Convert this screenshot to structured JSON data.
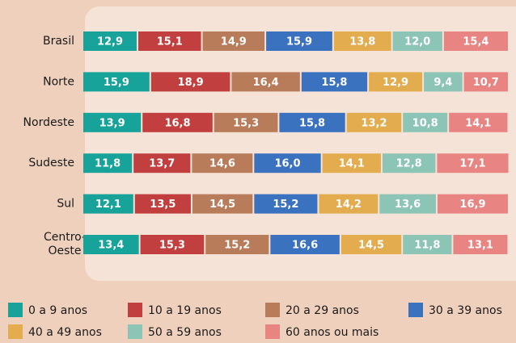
{
  "chart_data": {
    "type": "stacked_bar_horizontal",
    "categories": [
      "Brasil",
      "Norte",
      "Nordeste",
      "Sudeste",
      "Sul",
      "Centro-Oeste"
    ],
    "xlim": [
      0,
      100
    ],
    "series": [
      {
        "name": "0 a 9 anos",
        "color": "#17a39a",
        "values": [
          12.9,
          15.9,
          13.9,
          11.8,
          12.1,
          13.4
        ],
        "value_labels": [
          "12,9",
          "15,9",
          "13,9",
          "11,8",
          "12,1",
          "13,4"
        ]
      },
      {
        "name": "10 a 19 anos",
        "color": "#c1403f",
        "values": [
          15.1,
          18.9,
          16.8,
          13.7,
          13.5,
          15.3
        ],
        "value_labels": [
          "15,1",
          "18,9",
          "16,8",
          "13,7",
          "13,5",
          "15,3"
        ]
      },
      {
        "name": "20 a 29 anos",
        "color": "#b97c5a",
        "values": [
          14.9,
          16.4,
          15.3,
          14.6,
          14.5,
          15.2
        ],
        "value_labels": [
          "14,9",
          "16,4",
          "15,3",
          "14,6",
          "14,5",
          "15,2"
        ]
      },
      {
        "name": "30 a 39 anos",
        "color": "#3b72c0",
        "values": [
          15.9,
          15.8,
          15.8,
          16.0,
          15.2,
          16.6
        ],
        "value_labels": [
          "15,9",
          "15,8",
          "15,8",
          "16,0",
          "15,2",
          "16,6"
        ]
      },
      {
        "name": "40 a 49 anos",
        "color": "#e3ac4e",
        "values": [
          13.8,
          12.9,
          13.2,
          14.1,
          14.2,
          14.5
        ],
        "value_labels": [
          "13,8",
          "12,9",
          "13,2",
          "14,1",
          "14,2",
          "14,5"
        ]
      },
      {
        "name": "50 a 59 anos",
        "color": "#8cc4b5",
        "values": [
          12.0,
          9.4,
          10.8,
          12.8,
          13.6,
          11.8
        ],
        "value_labels": [
          "12,0",
          "9,4",
          "10,8",
          "12,8",
          "13,6",
          "11,8"
        ]
      },
      {
        "name": "60 anos ou mais",
        "color": "#e88582",
        "values": [
          15.4,
          10.7,
          14.1,
          17.1,
          16.9,
          13.1
        ],
        "value_labels": [
          "15,4",
          "10,7",
          "14,1",
          "17,1",
          "16,9",
          "13,1"
        ]
      }
    ]
  }
}
